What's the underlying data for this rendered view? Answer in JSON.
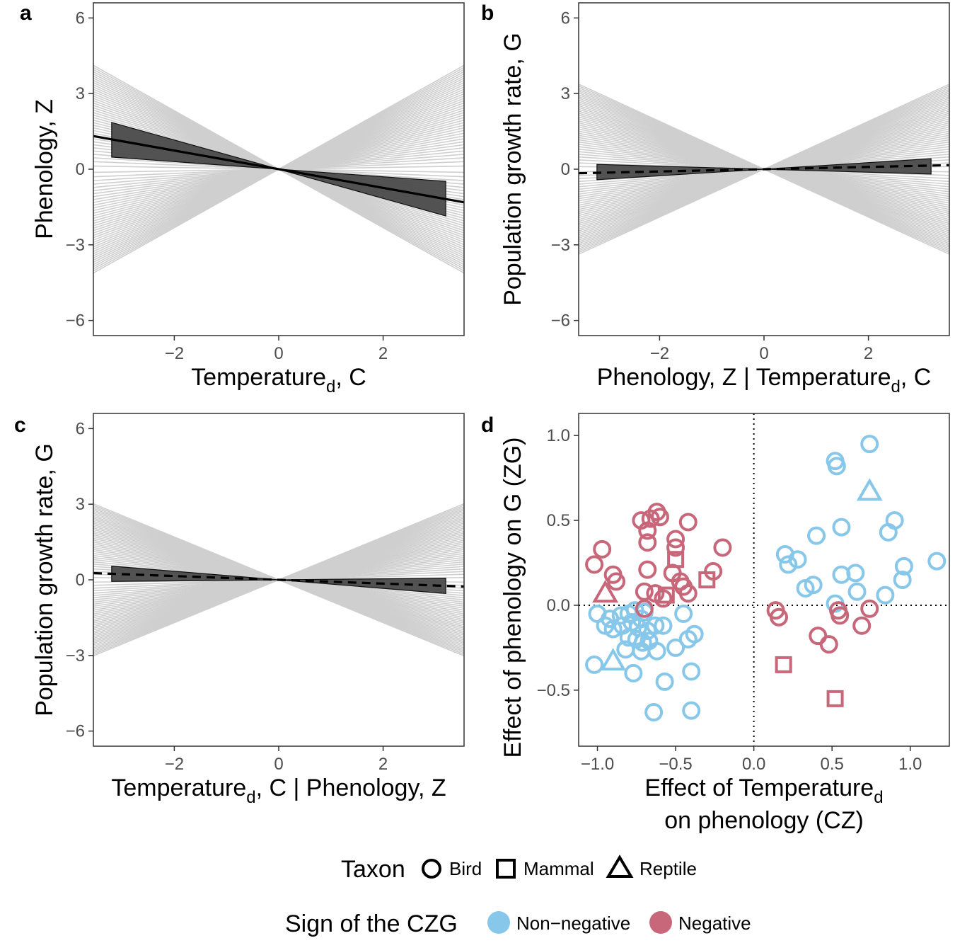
{
  "chart_data": [
    {
      "panel": "a",
      "type": "line",
      "xlabel": "Temperature",
      "xlabel_subscript": "d",
      "xlabel_suffix": ", C",
      "ylabel": "Phenology, Z",
      "xlim": [
        -3.55,
        3.55
      ],
      "ylim": [
        -6.6,
        6.6
      ],
      "xticks": [
        "−2",
        "0",
        "2"
      ],
      "xtick_values": [
        -2,
        0,
        2
      ],
      "yticks": [
        "−6",
        "−3",
        "0",
        "3",
        "6"
      ],
      "ytick_values": [
        -6,
        -3,
        0,
        3,
        6
      ],
      "mean_slope": -0.37,
      "ci_slope_low": -0.58,
      "ci_slope_high": -0.15,
      "mean_line_style": "solid",
      "ci_x_range": [
        -3.2,
        3.2
      ],
      "grey_slopes_range": [
        -1.16,
        1.16
      ],
      "grey_line_count": 80
    },
    {
      "panel": "b",
      "type": "line",
      "xlabel": "Phenology, Z | Temperature",
      "xlabel_subscript": "d",
      "xlabel_suffix": ", C",
      "ylabel": "Population growth rate, G",
      "xlim": [
        -3.55,
        3.55
      ],
      "ylim": [
        -6.6,
        6.6
      ],
      "xticks": [
        "−2",
        "0",
        "2"
      ],
      "xtick_values": [
        -2,
        0,
        2
      ],
      "yticks": [
        "−6",
        "−3",
        "0",
        "3",
        "6"
      ],
      "ytick_values": [
        -6,
        -3,
        0,
        3,
        6
      ],
      "mean_slope": 0.045,
      "ci_slope_low": -0.06,
      "ci_slope_high": 0.13,
      "mean_line_style": "dashed",
      "ci_x_range": [
        -3.2,
        3.2
      ],
      "grey_slopes_range": [
        -0.95,
        0.95
      ],
      "grey_line_count": 80
    },
    {
      "panel": "c",
      "type": "line",
      "xlabel": "Temperature",
      "xlabel_subscript": "d",
      "xlabel_suffix": ", C | Phenology, Z",
      "ylabel": "Population growth rate, G",
      "xlim": [
        -3.55,
        3.55
      ],
      "ylim": [
        -6.6,
        6.6
      ],
      "xticks": [
        "−2",
        "0",
        "2"
      ],
      "xtick_values": [
        -2,
        0,
        2
      ],
      "yticks": [
        "−6",
        "−3",
        "0",
        "3",
        "6"
      ],
      "ytick_values": [
        -6,
        -3,
        0,
        3,
        6
      ],
      "mean_slope": -0.075,
      "ci_slope_low": -0.17,
      "ci_slope_high": 0.02,
      "mean_line_style": "dashed",
      "ci_x_range": [
        -3.2,
        3.2
      ],
      "grey_slopes_range": [
        -0.85,
        0.85
      ],
      "grey_line_count": 80
    },
    {
      "panel": "d",
      "type": "scatter",
      "xlabel_line1": "Effect of Temperature",
      "xlabel_subscript": "d",
      "xlabel_line2": "on phenology (CZ)",
      "ylabel": "Effect of phenology on G (ZG)",
      "xlim": [
        -1.12,
        1.25
      ],
      "ylim": [
        -0.83,
        1.13
      ],
      "xticks": [
        "−1.0",
        "−0.5",
        "0.0",
        "0.5",
        "1.0"
      ],
      "xtick_values": [
        -1.0,
        -0.5,
        0.0,
        0.5,
        1.0
      ],
      "yticks": [
        "−0.5",
        "0.0",
        "0.5",
        "1.0"
      ],
      "ytick_values": [
        -0.5,
        0.0,
        0.5,
        1.0
      ],
      "reference_lines": {
        "x": 0,
        "y": 0,
        "style": "dotted"
      },
      "points": [
        {
          "x": 0.74,
          "y": 0.95,
          "taxon": "Bird",
          "sign": "Non-negative"
        },
        {
          "x": 0.52,
          "y": 0.85,
          "taxon": "Bird",
          "sign": "Non-negative"
        },
        {
          "x": 0.53,
          "y": 0.82,
          "taxon": "Bird",
          "sign": "Non-negative"
        },
        {
          "x": 0.74,
          "y": 0.67,
          "taxon": "Reptile",
          "sign": "Non-negative"
        },
        {
          "x": 0.9,
          "y": 0.5,
          "taxon": "Bird",
          "sign": "Non-negative"
        },
        {
          "x": 0.56,
          "y": 0.46,
          "taxon": "Bird",
          "sign": "Non-negative"
        },
        {
          "x": 0.86,
          "y": 0.43,
          "taxon": "Bird",
          "sign": "Non-negative"
        },
        {
          "x": 0.4,
          "y": 0.41,
          "taxon": "Bird",
          "sign": "Non-negative"
        },
        {
          "x": 0.2,
          "y": 0.3,
          "taxon": "Bird",
          "sign": "Non-negative"
        },
        {
          "x": 0.28,
          "y": 0.27,
          "taxon": "Bird",
          "sign": "Non-negative"
        },
        {
          "x": 1.17,
          "y": 0.26,
          "taxon": "Bird",
          "sign": "Non-negative"
        },
        {
          "x": 0.22,
          "y": 0.24,
          "taxon": "Bird",
          "sign": "Non-negative"
        },
        {
          "x": 0.96,
          "y": 0.23,
          "taxon": "Bird",
          "sign": "Non-negative"
        },
        {
          "x": 0.65,
          "y": 0.19,
          "taxon": "Bird",
          "sign": "Non-negative"
        },
        {
          "x": 0.56,
          "y": 0.18,
          "taxon": "Bird",
          "sign": "Non-negative"
        },
        {
          "x": 0.95,
          "y": 0.15,
          "taxon": "Bird",
          "sign": "Non-negative"
        },
        {
          "x": 0.38,
          "y": 0.12,
          "taxon": "Bird",
          "sign": "Non-negative"
        },
        {
          "x": 0.33,
          "y": 0.1,
          "taxon": "Bird",
          "sign": "Non-negative"
        },
        {
          "x": 0.66,
          "y": 0.08,
          "taxon": "Bird",
          "sign": "Non-negative"
        },
        {
          "x": 0.84,
          "y": 0.06,
          "taxon": "Bird",
          "sign": "Non-negative"
        },
        {
          "x": 0.52,
          "y": 0.01,
          "taxon": "Bird",
          "sign": "Non-negative"
        },
        {
          "x": -1.0,
          "y": -0.05,
          "taxon": "Bird",
          "sign": "Non-negative"
        },
        {
          "x": -0.92,
          "y": -0.08,
          "taxon": "Bird",
          "sign": "Non-negative"
        },
        {
          "x": -0.85,
          "y": -0.06,
          "taxon": "Bird",
          "sign": "Non-negative"
        },
        {
          "x": -0.8,
          "y": -0.05,
          "taxon": "Bird",
          "sign": "Non-negative"
        },
        {
          "x": -0.76,
          "y": -0.03,
          "taxon": "Bird",
          "sign": "Non-negative"
        },
        {
          "x": -0.72,
          "y": -0.08,
          "taxon": "Bird",
          "sign": "Non-negative"
        },
        {
          "x": -0.7,
          "y": -0.04,
          "taxon": "Bird",
          "sign": "Non-negative"
        },
        {
          "x": -0.95,
          "y": -0.12,
          "taxon": "Bird",
          "sign": "Non-negative"
        },
        {
          "x": -0.9,
          "y": -0.14,
          "taxon": "Bird",
          "sign": "Non-negative"
        },
        {
          "x": -0.84,
          "y": -0.12,
          "taxon": "Bird",
          "sign": "Non-negative"
        },
        {
          "x": -0.78,
          "y": -0.1,
          "taxon": "Bird",
          "sign": "Non-negative"
        },
        {
          "x": -0.74,
          "y": -0.13,
          "taxon": "Bird",
          "sign": "Non-negative"
        },
        {
          "x": -0.68,
          "y": -0.15,
          "taxon": "Bird",
          "sign": "Non-negative"
        },
        {
          "x": -0.63,
          "y": -0.12,
          "taxon": "Bird",
          "sign": "Non-negative"
        },
        {
          "x": -0.58,
          "y": -0.12,
          "taxon": "Bird",
          "sign": "Non-negative"
        },
        {
          "x": -0.45,
          "y": -0.05,
          "taxon": "Bird",
          "sign": "Non-negative"
        },
        {
          "x": -0.8,
          "y": -0.19,
          "taxon": "Bird",
          "sign": "Non-negative"
        },
        {
          "x": -0.75,
          "y": -0.2,
          "taxon": "Bird",
          "sign": "Non-negative"
        },
        {
          "x": -0.71,
          "y": -0.22,
          "taxon": "Bird",
          "sign": "Non-negative"
        },
        {
          "x": -0.67,
          "y": -0.21,
          "taxon": "Bird",
          "sign": "Non-negative"
        },
        {
          "x": -0.42,
          "y": -0.2,
          "taxon": "Bird",
          "sign": "Non-negative"
        },
        {
          "x": -0.38,
          "y": -0.17,
          "taxon": "Bird",
          "sign": "Non-negative"
        },
        {
          "x": -0.82,
          "y": -0.26,
          "taxon": "Bird",
          "sign": "Non-negative"
        },
        {
          "x": -0.72,
          "y": -0.27,
          "taxon": "Bird",
          "sign": "Non-negative"
        },
        {
          "x": -0.62,
          "y": -0.27,
          "taxon": "Bird",
          "sign": "Non-negative"
        },
        {
          "x": -0.5,
          "y": -0.25,
          "taxon": "Bird",
          "sign": "Non-negative"
        },
        {
          "x": -1.02,
          "y": -0.35,
          "taxon": "Bird",
          "sign": "Non-negative"
        },
        {
          "x": -0.9,
          "y": -0.33,
          "taxon": "Reptile",
          "sign": "Non-negative"
        },
        {
          "x": -0.77,
          "y": -0.4,
          "taxon": "Bird",
          "sign": "Non-negative"
        },
        {
          "x": -0.4,
          "y": -0.39,
          "taxon": "Bird",
          "sign": "Non-negative"
        },
        {
          "x": -0.57,
          "y": -0.45,
          "taxon": "Bird",
          "sign": "Non-negative"
        },
        {
          "x": -0.64,
          "y": -0.63,
          "taxon": "Bird",
          "sign": "Non-negative"
        },
        {
          "x": -0.4,
          "y": -0.62,
          "taxon": "Bird",
          "sign": "Non-negative"
        },
        {
          "x": -0.62,
          "y": 0.55,
          "taxon": "Bird",
          "sign": "Negative"
        },
        {
          "x": -0.6,
          "y": 0.52,
          "taxon": "Bird",
          "sign": "Negative"
        },
        {
          "x": -0.66,
          "y": 0.51,
          "taxon": "Bird",
          "sign": "Negative"
        },
        {
          "x": -0.72,
          "y": 0.5,
          "taxon": "Bird",
          "sign": "Negative"
        },
        {
          "x": -0.42,
          "y": 0.49,
          "taxon": "Bird",
          "sign": "Negative"
        },
        {
          "x": -0.68,
          "y": 0.44,
          "taxon": "Bird",
          "sign": "Negative"
        },
        {
          "x": -0.5,
          "y": 0.39,
          "taxon": "Bird",
          "sign": "Negative"
        },
        {
          "x": -0.68,
          "y": 0.37,
          "taxon": "Bird",
          "sign": "Negative"
        },
        {
          "x": -0.5,
          "y": 0.34,
          "taxon": "Bird",
          "sign": "Negative"
        },
        {
          "x": -0.2,
          "y": 0.34,
          "taxon": "Bird",
          "sign": "Negative"
        },
        {
          "x": -0.97,
          "y": 0.33,
          "taxon": "Bird",
          "sign": "Negative"
        },
        {
          "x": -0.5,
          "y": 0.27,
          "taxon": "Mammal",
          "sign": "Negative"
        },
        {
          "x": -1.02,
          "y": 0.24,
          "taxon": "Bird",
          "sign": "Negative"
        },
        {
          "x": -0.68,
          "y": 0.21,
          "taxon": "Bird",
          "sign": "Negative"
        },
        {
          "x": -0.26,
          "y": 0.2,
          "taxon": "Bird",
          "sign": "Negative"
        },
        {
          "x": -0.52,
          "y": 0.19,
          "taxon": "Bird",
          "sign": "Negative"
        },
        {
          "x": -0.9,
          "y": 0.18,
          "taxon": "Bird",
          "sign": "Negative"
        },
        {
          "x": -0.88,
          "y": 0.14,
          "taxon": "Bird",
          "sign": "Negative"
        },
        {
          "x": -0.3,
          "y": 0.15,
          "taxon": "Mammal",
          "sign": "Negative"
        },
        {
          "x": -0.47,
          "y": 0.14,
          "taxon": "Bird",
          "sign": "Negative"
        },
        {
          "x": -0.45,
          "y": 0.11,
          "taxon": "Bird",
          "sign": "Negative"
        },
        {
          "x": -0.7,
          "y": 0.08,
          "taxon": "Bird",
          "sign": "Negative"
        },
        {
          "x": -0.63,
          "y": 0.07,
          "taxon": "Bird",
          "sign": "Negative"
        },
        {
          "x": -0.56,
          "y": 0.06,
          "taxon": "Mammal",
          "sign": "Negative"
        },
        {
          "x": -0.95,
          "y": 0.07,
          "taxon": "Reptile",
          "sign": "Negative"
        },
        {
          "x": -0.58,
          "y": 0.04,
          "taxon": "Bird",
          "sign": "Negative"
        },
        {
          "x": -0.42,
          "y": 0.07,
          "taxon": "Bird",
          "sign": "Negative"
        },
        {
          "x": -0.7,
          "y": -0.02,
          "taxon": "Bird",
          "sign": "Negative"
        },
        {
          "x": 0.14,
          "y": -0.03,
          "taxon": "Bird",
          "sign": "Negative"
        },
        {
          "x": 0.16,
          "y": -0.07,
          "taxon": "Bird",
          "sign": "Negative"
        },
        {
          "x": 0.54,
          "y": -0.03,
          "taxon": "Bird",
          "sign": "Negative"
        },
        {
          "x": 0.55,
          "y": -0.06,
          "taxon": "Bird",
          "sign": "Negative"
        },
        {
          "x": 0.74,
          "y": -0.02,
          "taxon": "Bird",
          "sign": "Negative"
        },
        {
          "x": 0.69,
          "y": -0.12,
          "taxon": "Bird",
          "sign": "Negative"
        },
        {
          "x": 0.41,
          "y": -0.18,
          "taxon": "Bird",
          "sign": "Negative"
        },
        {
          "x": 0.48,
          "y": -0.23,
          "taxon": "Bird",
          "sign": "Negative"
        },
        {
          "x": 0.19,
          "y": -0.35,
          "taxon": "Mammal",
          "sign": "Negative"
        },
        {
          "x": 0.52,
          "y": -0.55,
          "taxon": "Mammal",
          "sign": "Negative"
        }
      ]
    }
  ],
  "panel_labels": {
    "a": "a",
    "b": "b",
    "c": "c",
    "d": "d"
  },
  "legend": {
    "taxon_title": "Taxon",
    "taxon_items": [
      "Bird",
      "Mammal",
      "Reptile"
    ],
    "sign_title": "Sign of the CZG",
    "sign_items": [
      "Non−negative",
      "Negative"
    ]
  },
  "colors": {
    "non_negative": "#87c8ea",
    "negative": "#c8677a",
    "grey_line": "#cfcfcf",
    "ci_fill": "#4a4a4a"
  }
}
